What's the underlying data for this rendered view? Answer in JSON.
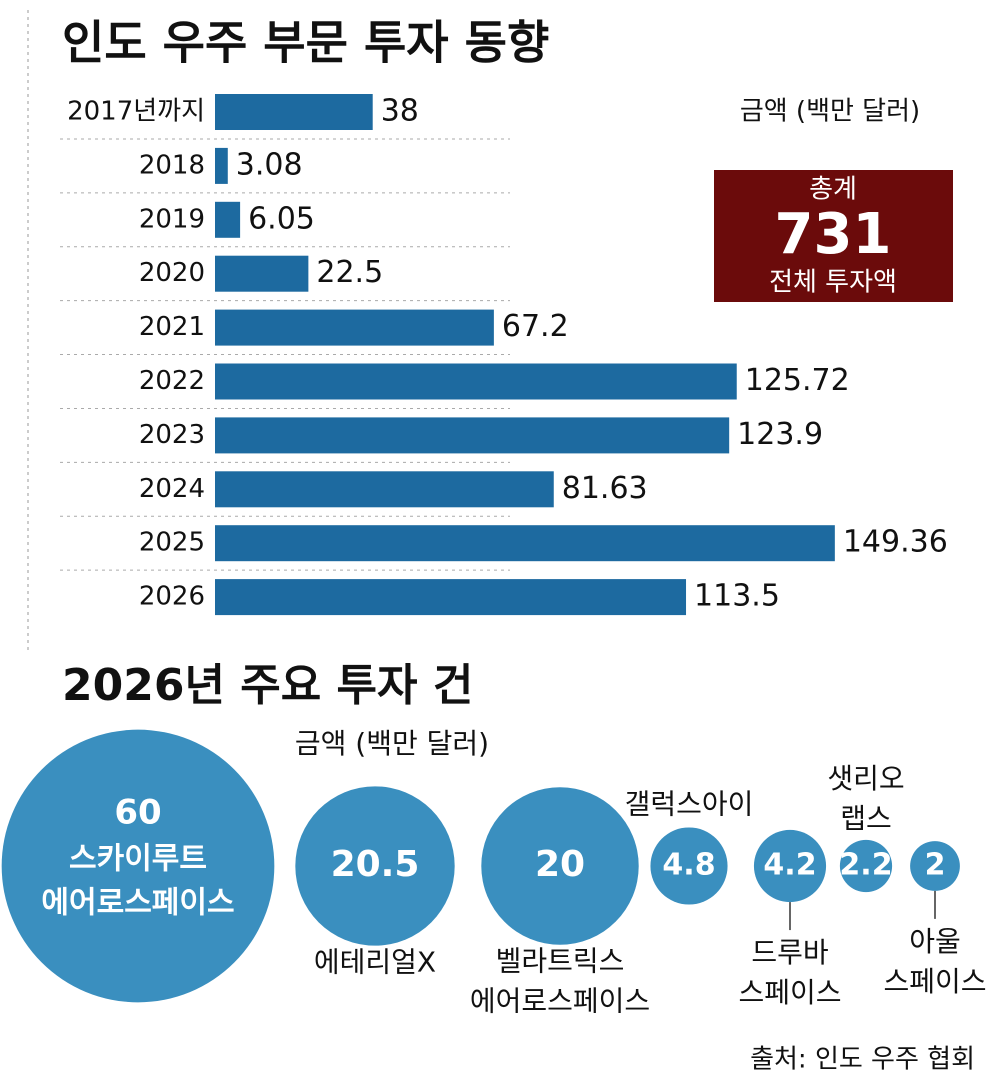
{
  "chart_data": [
    {
      "type": "bar",
      "orientation": "horizontal",
      "title": "인도 우주 부문 투자 동향",
      "unit_label": "금액 (백만 달러)",
      "categories": [
        "2017년까지",
        "2018",
        "2019",
        "2020",
        "2021",
        "2022",
        "2023",
        "2024",
        "2025",
        "2026"
      ],
      "values": [
        38,
        3.08,
        6.05,
        22.5,
        67.2,
        125.72,
        123.9,
        81.63,
        149.36,
        113.5
      ],
      "color": "#1d6aa0",
      "total": {
        "label": "총계",
        "value": 731,
        "caption": "전체 투자액",
        "color": "#6b0b0b"
      }
    },
    {
      "type": "bubble",
      "title": "2026년 주요 투자 건",
      "unit_label": "금액 (백만 달러)",
      "categories": [
        [
          "스카이루트",
          "에어로스페이스"
        ],
        [
          "에테리얼X"
        ],
        [
          "벨라트릭스",
          "에어로스페이스"
        ],
        [
          "갤럭스아이"
        ],
        [
          "드루바",
          "스페이스"
        ],
        [
          "샛리오",
          "랩스"
        ],
        [
          "아울",
          "스페이스"
        ]
      ],
      "values": [
        60,
        20.5,
        20,
        4.8,
        4.2,
        2.2,
        2
      ],
      "color": "#3a8fbf",
      "source": "출처: 인도 우주 협회"
    }
  ]
}
